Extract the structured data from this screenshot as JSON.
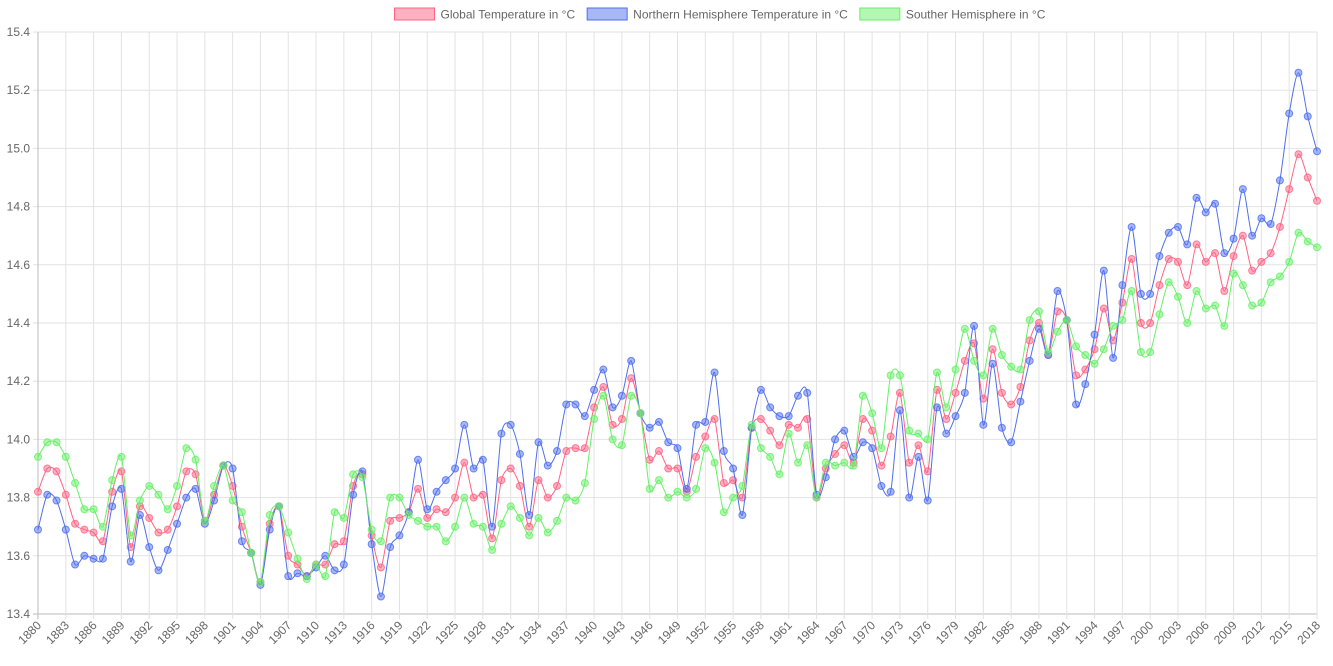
{
  "chart_data": {
    "type": "line",
    "title": "",
    "xlabel": "",
    "ylabel": "",
    "ylim": [
      13.4,
      15.4
    ],
    "ytick_step": 0.2,
    "x_start": 1880,
    "x_end": 2018,
    "xtick_step": 3,
    "grid": true,
    "legend_placement": "top",
    "series": [
      {
        "name": "Global Temperature in °C",
        "color": "#ff6384",
        "values": [
          13.82,
          13.9,
          13.89,
          13.81,
          13.71,
          13.69,
          13.68,
          13.65,
          13.82,
          13.89,
          13.63,
          13.77,
          13.73,
          13.68,
          13.69,
          13.77,
          13.89,
          13.88,
          13.72,
          13.81,
          13.91,
          13.84,
          13.7,
          13.61,
          13.51,
          13.71,
          13.77,
          13.6,
          13.57,
          13.53,
          13.57,
          13.57,
          13.64,
          13.65,
          13.84,
          13.88,
          13.67,
          13.56,
          13.72,
          13.73,
          13.75,
          13.83,
          13.73,
          13.76,
          13.75,
          13.8,
          13.92,
          13.8,
          13.81,
          13.66,
          13.86,
          13.9,
          13.84,
          13.7,
          13.86,
          13.8,
          13.84,
          13.96,
          13.97,
          13.97,
          14.11,
          14.18,
          14.05,
          14.07,
          14.21,
          14.09,
          13.93,
          13.96,
          13.9,
          13.9,
          13.82,
          13.94,
          14.01,
          14.07,
          13.85,
          13.86,
          13.8,
          14.04,
          14.07,
          14.03,
          13.98,
          14.05,
          14.04,
          14.07,
          13.8,
          13.9,
          13.95,
          13.98,
          13.92,
          14.07,
          14.03,
          13.91,
          14.01,
          14.16,
          13.92,
          13.98,
          13.89,
          14.17,
          14.07,
          14.16,
          14.27,
          14.33,
          14.14,
          14.31,
          14.16,
          14.12,
          14.18,
          14.34,
          14.4,
          14.29,
          14.44,
          14.41,
          14.22,
          14.24,
          14.31,
          14.45,
          14.34,
          14.47,
          14.62,
          14.4,
          14.4,
          14.53,
          14.62,
          14.61,
          14.53,
          14.67,
          14.61,
          14.64,
          14.51,
          14.63,
          14.7,
          14.58,
          14.61,
          14.64,
          14.73,
          14.86,
          14.98,
          14.9,
          14.82
        ]
      },
      {
        "name": "Northern Hemisphere Temperature in °C",
        "color": "#4f6fef",
        "values": [
          13.69,
          13.81,
          13.79,
          13.69,
          13.57,
          13.6,
          13.59,
          13.59,
          13.77,
          13.83,
          13.58,
          13.74,
          13.63,
          13.55,
          13.62,
          13.71,
          13.8,
          13.83,
          13.71,
          13.79,
          13.91,
          13.9,
          13.65,
          13.61,
          13.5,
          13.69,
          13.77,
          13.53,
          13.54,
          13.53,
          13.56,
          13.6,
          13.55,
          13.57,
          13.81,
          13.89,
          13.64,
          13.46,
          13.63,
          13.67,
          13.75,
          13.93,
          13.76,
          13.82,
          13.86,
          13.9,
          14.05,
          13.9,
          13.93,
          13.7,
          14.02,
          14.05,
          13.95,
          13.74,
          13.99,
          13.91,
          13.96,
          14.12,
          14.12,
          14.08,
          14.17,
          14.24,
          14.11,
          14.15,
          14.27,
          14.09,
          14.04,
          14.06,
          13.99,
          13.97,
          13.83,
          14.05,
          14.06,
          14.23,
          13.96,
          13.9,
          13.74,
          14.04,
          14.17,
          14.11,
          14.08,
          14.08,
          14.15,
          14.16,
          13.81,
          13.87,
          14.0,
          14.03,
          13.94,
          13.99,
          13.97,
          13.84,
          13.82,
          14.1,
          13.8,
          13.94,
          13.79,
          14.11,
          14.02,
          14.08,
          14.16,
          14.39,
          14.05,
          14.26,
          14.04,
          13.99,
          14.13,
          14.27,
          14.38,
          14.29,
          14.51,
          14.41,
          14.12,
          14.19,
          14.36,
          14.58,
          14.28,
          14.53,
          14.73,
          14.5,
          14.5,
          14.63,
          14.71,
          14.73,
          14.67,
          14.83,
          14.78,
          14.81,
          14.64,
          14.69,
          14.86,
          14.7,
          14.76,
          14.74,
          14.89,
          15.12,
          15.26,
          15.11,
          14.99
        ]
      },
      {
        "name": "Souther Hemisphere in °C",
        "color": "#66f066",
        "values": [
          13.94,
          13.99,
          13.99,
          13.94,
          13.85,
          13.76,
          13.76,
          13.7,
          13.86,
          13.94,
          13.67,
          13.79,
          13.84,
          13.81,
          13.76,
          13.84,
          13.97,
          13.93,
          13.72,
          13.84,
          13.91,
          13.79,
          13.75,
          13.61,
          13.51,
          13.74,
          13.77,
          13.68,
          13.59,
          13.52,
          13.57,
          13.53,
          13.75,
          13.73,
          13.88,
          13.87,
          13.69,
          13.65,
          13.8,
          13.8,
          13.74,
          13.72,
          13.7,
          13.7,
          13.65,
          13.7,
          13.8,
          13.71,
          13.7,
          13.62,
          13.71,
          13.77,
          13.73,
          13.67,
          13.73,
          13.68,
          13.72,
          13.8,
          13.79,
          13.85,
          14.07,
          14.15,
          14.0,
          13.98,
          14.15,
          14.09,
          13.83,
          13.86,
          13.8,
          13.82,
          13.8,
          13.83,
          13.97,
          13.92,
          13.75,
          13.8,
          13.84,
          14.05,
          13.97,
          13.94,
          13.88,
          14.02,
          13.92,
          13.98,
          13.8,
          13.92,
          13.91,
          13.92,
          13.91,
          14.15,
          14.09,
          13.97,
          14.22,
          14.22,
          14.03,
          14.02,
          14.0,
          14.23,
          14.11,
          14.24,
          14.38,
          14.27,
          14.22,
          14.38,
          14.29,
          14.25,
          14.24,
          14.41,
          14.44,
          14.3,
          14.37,
          14.41,
          14.32,
          14.29,
          14.26,
          14.31,
          14.39,
          14.41,
          14.51,
          14.3,
          14.3,
          14.43,
          14.54,
          14.49,
          14.4,
          14.51,
          14.45,
          14.46,
          14.39,
          14.57,
          14.53,
          14.46,
          14.47,
          14.54,
          14.56,
          14.61,
          14.71,
          14.68,
          14.66
        ]
      }
    ]
  }
}
